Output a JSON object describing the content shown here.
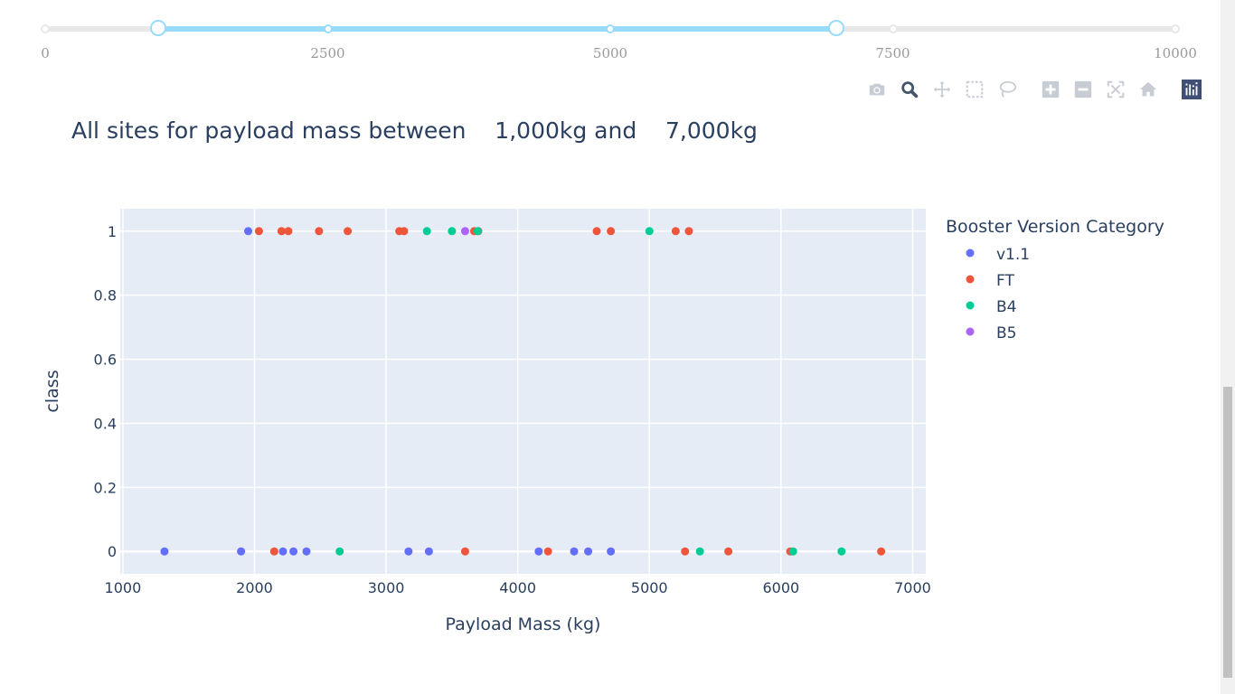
{
  "slider": {
    "min": 0,
    "max": 10000,
    "value": [
      1000,
      7000
    ],
    "marks": [
      {
        "value": 0,
        "label": "0"
      },
      {
        "value": 2500,
        "label": "2500"
      },
      {
        "value": 5000,
        "label": "5000"
      },
      {
        "value": 7500,
        "label": "7500"
      },
      {
        "value": 10000,
        "label": "10000"
      }
    ]
  },
  "modebar": {
    "buttons": [
      "camera-icon",
      "zoom-icon",
      "pan-icon",
      "box-select-icon",
      "lasso-select-icon",
      "zoom-in-icon",
      "zoom-out-icon",
      "autoscale-icon",
      "reset-axes-icon",
      "plotly-logo-icon"
    ],
    "active": "zoom-icon"
  },
  "heading": "All sites for payload mass between    1,000kg and    7,000kg",
  "chart_data": {
    "type": "scatter",
    "title": "",
    "xlabel": "Payload Mass (kg)",
    "ylabel": "class",
    "xlim": [
      980,
      7100
    ],
    "ylim": [
      -0.07,
      1.07
    ],
    "xticks": [
      1000,
      2000,
      3000,
      4000,
      5000,
      6000,
      7000
    ],
    "xtick_labels": [
      "1000",
      "2000",
      "3000",
      "4000",
      "5000",
      "6000",
      "7000"
    ],
    "yticks": [
      0,
      0.2,
      0.4,
      0.6,
      0.8,
      1
    ],
    "ytick_labels": [
      "0",
      "0.2",
      "0.4",
      "0.6",
      "0.8",
      "1"
    ],
    "grid": true,
    "legend_title": "Booster Version Category",
    "legend_position": "right",
    "series": [
      {
        "name": "v1.1",
        "color": "#636efa",
        "x": [
          1952,
          1316,
          1898,
          2216,
          2296,
          2395,
          3170,
          3325,
          4159,
          4428,
          4535,
          4707
        ],
        "y": [
          1,
          0,
          0,
          0,
          0,
          0,
          0,
          0,
          0,
          0,
          0,
          0
        ]
      },
      {
        "name": "FT",
        "color": "#ef553b",
        "x": [
          2034,
          2205,
          2257,
          2490,
          2708,
          3100,
          3136,
          3669,
          3700,
          4600,
          4707,
          5200,
          5300,
          2150,
          3600,
          4230,
          5271,
          5600,
          6070,
          6761
        ],
        "y": [
          1,
          1,
          1,
          1,
          1,
          1,
          1,
          1,
          1,
          1,
          1,
          1,
          1,
          0,
          0,
          0,
          0,
          0,
          0,
          0
        ]
      },
      {
        "name": "B4",
        "color": "#00cc96",
        "x": [
          3310,
          3500,
          3696,
          5000,
          2647,
          5384,
          6092,
          6460
        ],
        "y": [
          1,
          1,
          1,
          1,
          0,
          0,
          0,
          0
        ]
      },
      {
        "name": "B5",
        "color": "#ab63fa",
        "x": [
          3600
        ],
        "y": [
          1
        ]
      }
    ]
  }
}
